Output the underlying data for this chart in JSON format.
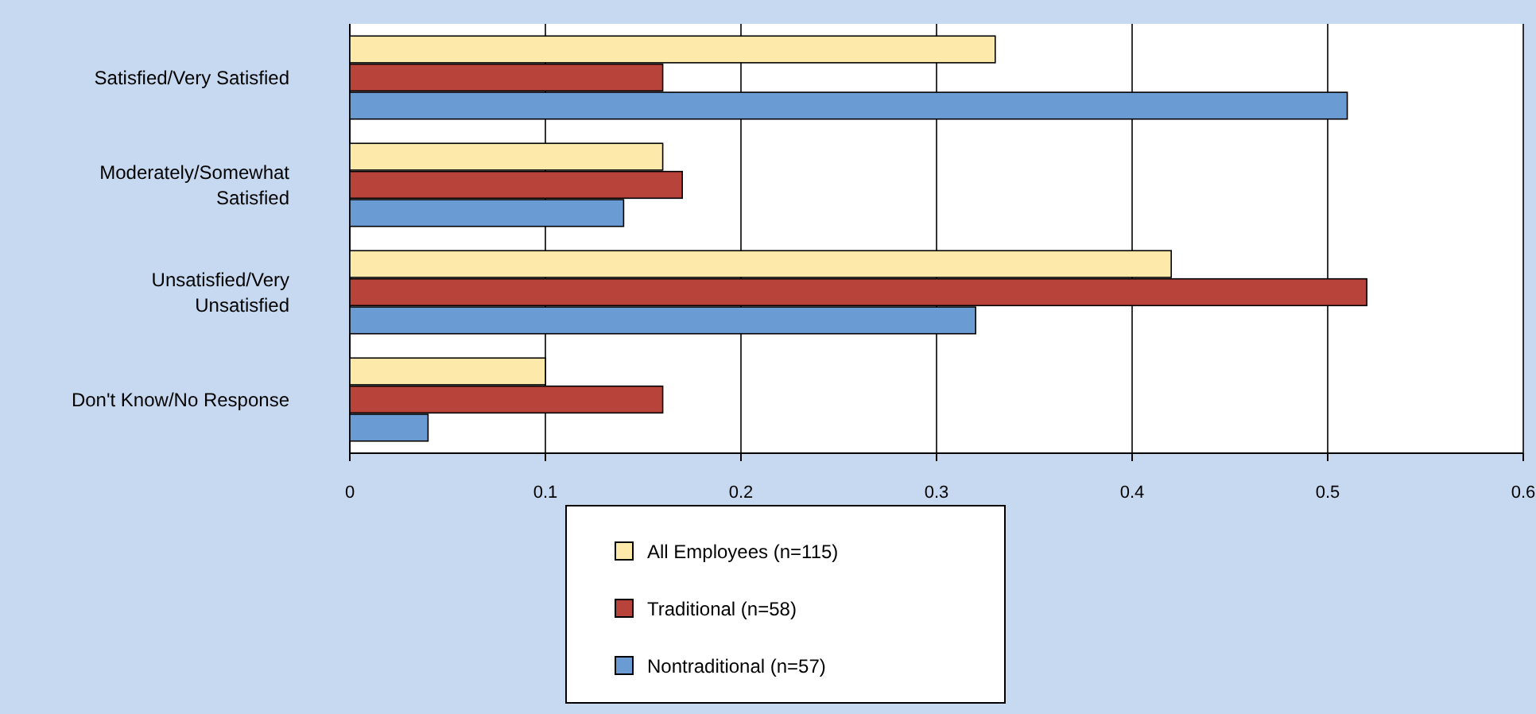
{
  "chart_data": {
    "type": "bar",
    "orientation": "horizontal",
    "categories": [
      "Satisfied/Very Satisfied",
      "Moderately/Somewhat Satisfied",
      "Unsatisfied/Very Unsatisfied",
      "Don't Know/No Response"
    ],
    "series": [
      {
        "name": "All Employees (n=115)",
        "color": "#fde9a9",
        "values": [
          0.33,
          0.16,
          0.42,
          0.1
        ]
      },
      {
        "name": "Traditional (n=58)",
        "color": "#b8433a",
        "values": [
          0.16,
          0.17,
          0.52,
          0.16
        ]
      },
      {
        "name": "Nontraditional (n=57)",
        "color": "#6a9bd2",
        "values": [
          0.51,
          0.14,
          0.32,
          0.04
        ]
      }
    ],
    "xlim": [
      0,
      0.6
    ],
    "xticks": [
      0,
      0.1,
      0.2,
      0.3,
      0.4,
      0.5,
      0.6
    ],
    "grid": "x",
    "legend": "bottom"
  }
}
